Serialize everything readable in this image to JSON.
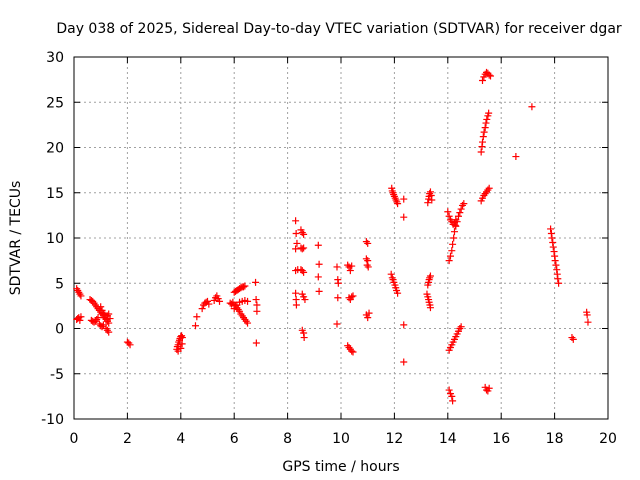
{
  "chart_data": {
    "type": "scatter",
    "title": "Day 038 of 2025, Sidereal Day-to-day VTEC variation (SDTVAR) for receiver dgar",
    "xlabel": "GPS time / hours",
    "ylabel": "SDTVAR / TECUs",
    "xlim": [
      0,
      20
    ],
    "ylim": [
      -10,
      30
    ],
    "xticks": [
      0,
      2,
      4,
      6,
      8,
      10,
      12,
      14,
      16,
      18,
      20
    ],
    "yticks": [
      -10,
      -5,
      0,
      5,
      10,
      15,
      20,
      25,
      30
    ],
    "grid": true,
    "marker": "plus",
    "color": "#ff0000",
    "series": [
      {
        "name": "SDTVAR",
        "points": [
          [
            0.1,
            4.4
          ],
          [
            0.14,
            4.2
          ],
          [
            0.18,
            4.0
          ],
          [
            0.22,
            3.8
          ],
          [
            0.26,
            3.6
          ],
          [
            0.1,
            1.0
          ],
          [
            0.14,
            1.1
          ],
          [
            0.18,
            1.2
          ],
          [
            0.22,
            0.9
          ],
          [
            0.26,
            1.3
          ],
          [
            0.6,
            3.2
          ],
          [
            0.65,
            3.1
          ],
          [
            0.7,
            3.0
          ],
          [
            0.75,
            2.8
          ],
          [
            0.8,
            2.6
          ],
          [
            0.85,
            2.4
          ],
          [
            0.9,
            2.2
          ],
          [
            0.95,
            2.0
          ],
          [
            1.0,
            1.8
          ],
          [
            1.05,
            1.6
          ],
          [
            1.1,
            1.4
          ],
          [
            1.15,
            1.2
          ],
          [
            1.2,
            1.0
          ],
          [
            1.25,
            0.8
          ],
          [
            1.3,
            0.6
          ],
          [
            0.65,
            0.9
          ],
          [
            0.7,
            0.8
          ],
          [
            0.75,
            0.7
          ],
          [
            0.8,
            0.8
          ],
          [
            0.85,
            1.0
          ],
          [
            0.9,
            1.2
          ],
          [
            0.95,
            0.5
          ],
          [
            1.0,
            0.3
          ],
          [
            1.05,
            0.2
          ],
          [
            1.1,
            0.4
          ],
          [
            1.2,
            0.0
          ],
          [
            1.25,
            -0.2
          ],
          [
            1.3,
            -0.4
          ],
          [
            1.0,
            2.4
          ],
          [
            1.05,
            2.0
          ],
          [
            1.1,
            1.7
          ],
          [
            1.15,
            1.5
          ],
          [
            1.2,
            1.1
          ],
          [
            1.25,
            1.4
          ],
          [
            1.3,
            1.6
          ],
          [
            1.35,
            1.1
          ],
          [
            2.0,
            -1.5
          ],
          [
            2.05,
            -1.6
          ],
          [
            2.1,
            -1.8
          ],
          [
            3.85,
            -2.3
          ],
          [
            3.87,
            -2.0
          ],
          [
            3.9,
            -1.8
          ],
          [
            3.92,
            -1.5
          ],
          [
            3.95,
            -1.3
          ],
          [
            3.97,
            -1.1
          ],
          [
            4.0,
            -0.9
          ],
          [
            4.03,
            -0.8
          ],
          [
            4.06,
            -1.0
          ],
          [
            3.9,
            -2.5
          ],
          [
            4.0,
            -2.2
          ],
          [
            4.05,
            -1.7
          ],
          [
            4.55,
            0.3
          ],
          [
            4.6,
            1.3
          ],
          [
            4.8,
            2.2
          ],
          [
            4.85,
            2.6
          ],
          [
            4.9,
            2.8
          ],
          [
            4.95,
            2.9
          ],
          [
            5.0,
            3.0
          ],
          [
            5.05,
            2.7
          ],
          [
            5.25,
            3.1
          ],
          [
            5.3,
            3.4
          ],
          [
            5.35,
            3.6
          ],
          [
            5.4,
            3.3
          ],
          [
            5.45,
            3.0
          ],
          [
            5.85,
            2.8
          ],
          [
            5.9,
            2.7
          ],
          [
            5.95,
            2.9
          ],
          [
            6.0,
            2.6
          ],
          [
            6.05,
            2.5
          ],
          [
            6.1,
            2.3
          ],
          [
            6.15,
            2.1
          ],
          [
            6.2,
            1.9
          ],
          [
            6.25,
            1.6
          ],
          [
            6.3,
            1.4
          ],
          [
            6.35,
            1.2
          ],
          [
            6.4,
            1.0
          ],
          [
            6.45,
            0.8
          ],
          [
            6.5,
            0.6
          ],
          [
            6.0,
            4.0
          ],
          [
            6.05,
            4.1
          ],
          [
            6.1,
            4.2
          ],
          [
            6.15,
            4.3
          ],
          [
            6.2,
            4.4
          ],
          [
            6.25,
            4.5
          ],
          [
            6.3,
            4.6
          ],
          [
            6.35,
            4.6
          ],
          [
            6.4,
            4.7
          ],
          [
            6.0,
            2.2
          ],
          [
            6.1,
            2.6
          ],
          [
            6.2,
            2.9
          ],
          [
            6.3,
            3.0
          ],
          [
            6.4,
            3.1
          ],
          [
            6.5,
            3.0
          ],
          [
            6.8,
            5.1
          ],
          [
            6.82,
            3.2
          ],
          [
            6.85,
            2.6
          ],
          [
            6.85,
            1.9
          ],
          [
            6.83,
            -1.6
          ],
          [
            8.3,
            11.9
          ],
          [
            8.32,
            10.5
          ],
          [
            8.3,
            8.8
          ],
          [
            8.35,
            9.4
          ],
          [
            8.3,
            6.4
          ],
          [
            8.38,
            6.5
          ],
          [
            8.3,
            3.9
          ],
          [
            8.32,
            3.2
          ],
          [
            8.33,
            2.6
          ],
          [
            8.5,
            10.9
          ],
          [
            8.55,
            10.6
          ],
          [
            8.6,
            10.4
          ],
          [
            8.5,
            8.9
          ],
          [
            8.55,
            8.8
          ],
          [
            8.6,
            8.9
          ],
          [
            8.5,
            6.5
          ],
          [
            8.55,
            6.4
          ],
          [
            8.6,
            6.2
          ],
          [
            8.55,
            3.8
          ],
          [
            8.6,
            3.5
          ],
          [
            8.65,
            3.2
          ],
          [
            8.55,
            -0.2
          ],
          [
            8.6,
            -0.5
          ],
          [
            8.62,
            -1.0
          ],
          [
            9.15,
            9.2
          ],
          [
            9.18,
            7.1
          ],
          [
            9.15,
            5.7
          ],
          [
            9.18,
            4.1
          ],
          [
            9.85,
            6.8
          ],
          [
            9.88,
            5.4
          ],
          [
            9.9,
            5.0
          ],
          [
            9.88,
            3.4
          ],
          [
            9.85,
            0.5
          ],
          [
            10.25,
            7.0
          ],
          [
            10.3,
            6.8
          ],
          [
            10.35,
            6.4
          ],
          [
            10.4,
            6.9
          ],
          [
            10.3,
            3.4
          ],
          [
            10.35,
            3.2
          ],
          [
            10.4,
            3.5
          ],
          [
            10.45,
            3.6
          ],
          [
            10.25,
            -1.9
          ],
          [
            10.3,
            -2.1
          ],
          [
            10.35,
            -2.3
          ],
          [
            10.4,
            -2.5
          ],
          [
            10.45,
            -2.6
          ],
          [
            10.95,
            9.6
          ],
          [
            11.0,
            9.4
          ],
          [
            10.95,
            7.7
          ],
          [
            11.0,
            7.5
          ],
          [
            10.98,
            7.0
          ],
          [
            11.02,
            6.8
          ],
          [
            10.95,
            1.5
          ],
          [
            11.0,
            1.2
          ],
          [
            11.05,
            1.7
          ],
          [
            11.9,
            15.5
          ],
          [
            11.92,
            15.2
          ],
          [
            11.95,
            15.0
          ],
          [
            11.97,
            14.8
          ],
          [
            12.0,
            14.6
          ],
          [
            12.03,
            14.4
          ],
          [
            12.06,
            14.2
          ],
          [
            12.09,
            14.0
          ],
          [
            12.12,
            13.8
          ],
          [
            11.88,
            6.0
          ],
          [
            11.92,
            5.6
          ],
          [
            11.95,
            5.4
          ],
          [
            11.98,
            5.1
          ],
          [
            12.02,
            4.8
          ],
          [
            12.05,
            4.5
          ],
          [
            12.08,
            4.2
          ],
          [
            12.12,
            3.9
          ],
          [
            12.35,
            14.3
          ],
          [
            12.35,
            12.3
          ],
          [
            12.35,
            0.4
          ],
          [
            12.35,
            -3.7
          ],
          [
            13.25,
            13.9
          ],
          [
            13.28,
            14.3
          ],
          [
            13.3,
            14.6
          ],
          [
            13.32,
            14.9
          ],
          [
            13.35,
            15.1
          ],
          [
            13.38,
            14.7
          ],
          [
            13.4,
            14.2
          ],
          [
            13.25,
            4.8
          ],
          [
            13.28,
            5.1
          ],
          [
            13.3,
            5.4
          ],
          [
            13.32,
            5.6
          ],
          [
            13.35,
            5.8
          ],
          [
            13.22,
            3.8
          ],
          [
            13.25,
            3.5
          ],
          [
            13.28,
            3.2
          ],
          [
            13.3,
            2.9
          ],
          [
            13.33,
            2.6
          ],
          [
            13.35,
            2.3
          ],
          [
            14.0,
            12.9
          ],
          [
            14.05,
            12.4
          ],
          [
            14.1,
            12.0
          ],
          [
            14.15,
            11.8
          ],
          [
            14.2,
            11.5
          ],
          [
            14.25,
            11.7
          ],
          [
            14.05,
            7.5
          ],
          [
            14.1,
            8.0
          ],
          [
            14.15,
            8.6
          ],
          [
            14.18,
            9.3
          ],
          [
            14.22,
            10.0
          ],
          [
            14.25,
            10.7
          ],
          [
            14.28,
            11.4
          ],
          [
            14.3,
            12.0
          ],
          [
            14.3,
            11.3
          ],
          [
            14.35,
            11.8
          ],
          [
            14.4,
            12.4
          ],
          [
            14.45,
            12.8
          ],
          [
            14.5,
            13.2
          ],
          [
            14.55,
            13.6
          ],
          [
            14.6,
            13.8
          ],
          [
            14.05,
            -2.4
          ],
          [
            14.1,
            -2.1
          ],
          [
            14.15,
            -1.8
          ],
          [
            14.2,
            -1.5
          ],
          [
            14.25,
            -1.2
          ],
          [
            14.3,
            -0.9
          ],
          [
            14.35,
            -0.6
          ],
          [
            14.4,
            -0.3
          ],
          [
            14.45,
            0.0
          ],
          [
            14.5,
            0.2
          ],
          [
            14.05,
            -6.8
          ],
          [
            14.1,
            -7.2
          ],
          [
            14.15,
            -7.5
          ],
          [
            14.18,
            -8.0
          ],
          [
            15.25,
            19.5
          ],
          [
            15.28,
            20.1
          ],
          [
            15.3,
            20.6
          ],
          [
            15.33,
            21.2
          ],
          [
            15.36,
            21.7
          ],
          [
            15.4,
            22.2
          ],
          [
            15.43,
            22.7
          ],
          [
            15.46,
            23.1
          ],
          [
            15.5,
            23.5
          ],
          [
            15.53,
            23.8
          ],
          [
            15.3,
            27.4
          ],
          [
            15.35,
            27.8
          ],
          [
            15.4,
            28.1
          ],
          [
            15.45,
            28.3
          ],
          [
            15.5,
            28.2
          ],
          [
            15.55,
            28.0
          ],
          [
            15.6,
            27.9
          ],
          [
            15.25,
            14.1
          ],
          [
            15.3,
            14.4
          ],
          [
            15.35,
            14.7
          ],
          [
            15.4,
            14.9
          ],
          [
            15.45,
            15.1
          ],
          [
            15.5,
            15.3
          ],
          [
            15.55,
            15.5
          ],
          [
            15.4,
            -6.5
          ],
          [
            15.45,
            -6.8
          ],
          [
            15.5,
            -6.9
          ],
          [
            15.55,
            -6.6
          ],
          [
            16.55,
            19.0
          ],
          [
            17.15,
            24.5
          ],
          [
            17.85,
            11.0
          ],
          [
            17.88,
            10.5
          ],
          [
            17.9,
            10.0
          ],
          [
            17.93,
            9.5
          ],
          [
            17.95,
            9.0
          ],
          [
            17.98,
            8.5
          ],
          [
            18.0,
            8.0
          ],
          [
            18.02,
            7.5
          ],
          [
            18.05,
            7.0
          ],
          [
            18.08,
            6.5
          ],
          [
            18.1,
            6.0
          ],
          [
            18.12,
            5.5
          ],
          [
            18.15,
            5.0
          ],
          [
            18.65,
            -1.0
          ],
          [
            18.7,
            -1.2
          ],
          [
            19.2,
            1.8
          ],
          [
            19.22,
            1.5
          ],
          [
            19.25,
            0.7
          ]
        ]
      }
    ]
  }
}
